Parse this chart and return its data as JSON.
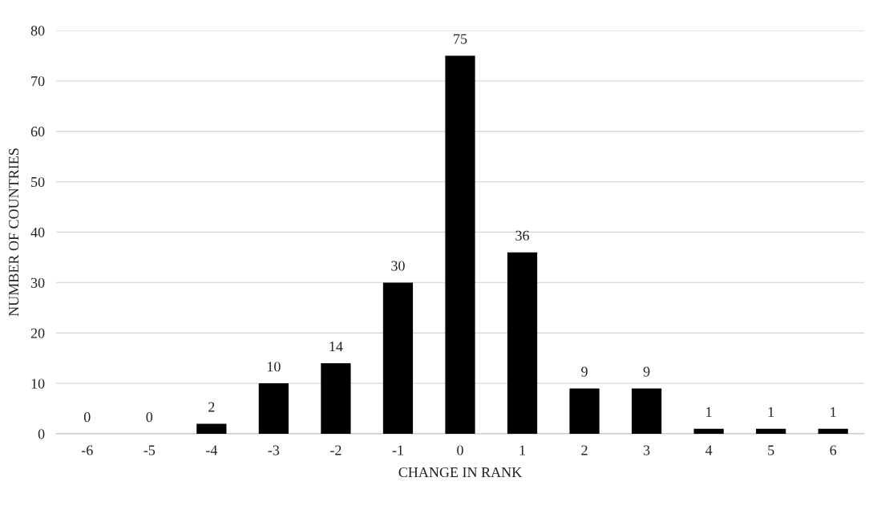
{
  "chart_data": {
    "type": "bar",
    "xlabel": "CHANGE IN RANK",
    "ylabel": "NUMBER OF COUNTRIES",
    "categories": [
      "-6",
      "-5",
      "-4",
      "-3",
      "-2",
      "-1",
      "0",
      "1",
      "2",
      "3",
      "4",
      "5",
      "6"
    ],
    "values": [
      0,
      0,
      2,
      10,
      14,
      30,
      75,
      36,
      9,
      9,
      1,
      1,
      1
    ],
    "color": "#000000",
    "ylim": [
      0,
      80
    ],
    "yticks": [
      0,
      10,
      20,
      30,
      40,
      50,
      60,
      70,
      80
    ],
    "grid": "y",
    "data_labels": true
  }
}
